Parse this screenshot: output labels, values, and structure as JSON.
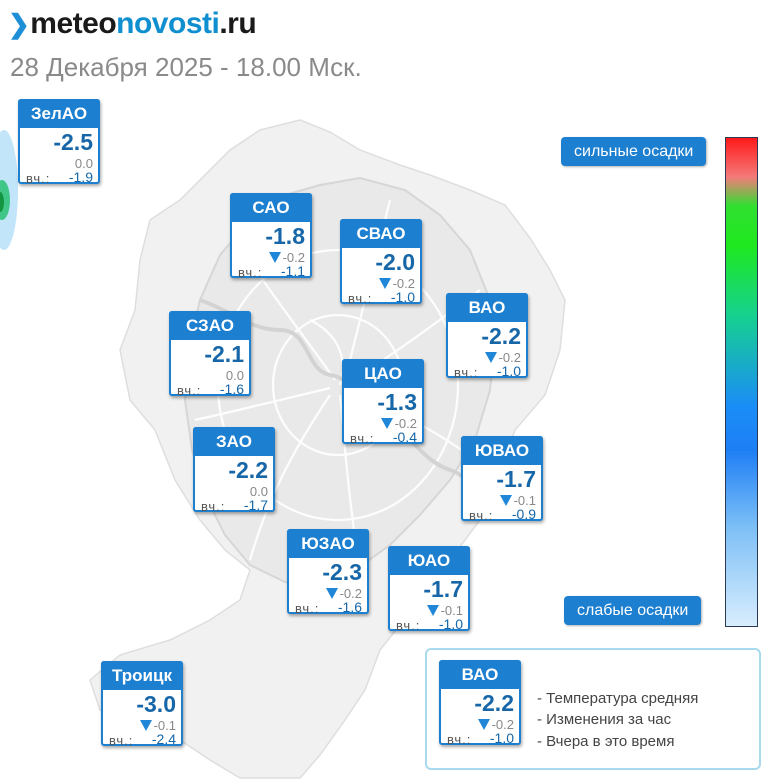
{
  "header": {
    "logo_mark": "❯",
    "logo_part1": "meteo",
    "logo_part2": "novosti",
    "logo_part3": ".ru",
    "subtitle": "28 Декабря 2025 - 18.00 Мск."
  },
  "map": {
    "districts": [
      {
        "name": "ЗелАО",
        "temp": "-2.5",
        "change": "0.0",
        "change_trend": "none",
        "yesterday_label": "вч.:",
        "yesterday": "-1.9"
      },
      {
        "name": "САО",
        "temp": "-1.8",
        "change": "-0.2",
        "change_trend": "down",
        "yesterday_label": "вч.:",
        "yesterday": "-1.1"
      },
      {
        "name": "СВАО",
        "temp": "-2.0",
        "change": "-0.2",
        "change_trend": "down",
        "yesterday_label": "вч.:",
        "yesterday": "-1.0"
      },
      {
        "name": "ВАО",
        "temp": "-2.2",
        "change": "-0.2",
        "change_trend": "down",
        "yesterday_label": "вч.:",
        "yesterday": "-1.0"
      },
      {
        "name": "СЗАО",
        "temp": "-2.1",
        "change": "0.0",
        "change_trend": "none",
        "yesterday_label": "вч.:",
        "yesterday": "-1.6"
      },
      {
        "name": "ЦАО",
        "temp": "-1.3",
        "change": "-0.2",
        "change_trend": "down",
        "yesterday_label": "вч.:",
        "yesterday": "-0.4"
      },
      {
        "name": "ЗАО",
        "temp": "-2.2",
        "change": "0.0",
        "change_trend": "none",
        "yesterday_label": "вч.:",
        "yesterday": "-1.7"
      },
      {
        "name": "ЮВАО",
        "temp": "-1.7",
        "change": "-0.1",
        "change_trend": "down",
        "yesterday_label": "вч.:",
        "yesterday": "-0.9"
      },
      {
        "name": "ЮЗАО",
        "temp": "-2.3",
        "change": "-0.2",
        "change_trend": "down",
        "yesterday_label": "вч.:",
        "yesterday": "-1.6"
      },
      {
        "name": "ЮАО",
        "temp": "-1.7",
        "change": "-0.1",
        "change_trend": "down",
        "yesterday_label": "вч.:",
        "yesterday": "-1.0"
      },
      {
        "name": "Троицк",
        "temp": "-3.0",
        "change": "-0.1",
        "change_trend": "down",
        "yesterday_label": "вч.:",
        "yesterday": "-2.4"
      }
    ]
  },
  "precipitation_scale": {
    "top_label": "сильные осадки",
    "bottom_label": "слабые осадки",
    "colors": [
      "#ff1a1a",
      "#1fe81f",
      "#1a8df7",
      "#d8edfd"
    ]
  },
  "legend": {
    "example": {
      "name": "ВАО",
      "temp": "-2.2",
      "change": "-0.2",
      "change_trend": "down",
      "yesterday_label": "вч.:",
      "yesterday": "-1.0"
    },
    "items": [
      "- Температура средняя",
      "- Изменения за час",
      "- Вчера в это время"
    ]
  },
  "colors": {
    "accent": "#1d7fd0",
    "temperature_text": "#1767a8",
    "trend_arrow": "#1f86d8"
  }
}
